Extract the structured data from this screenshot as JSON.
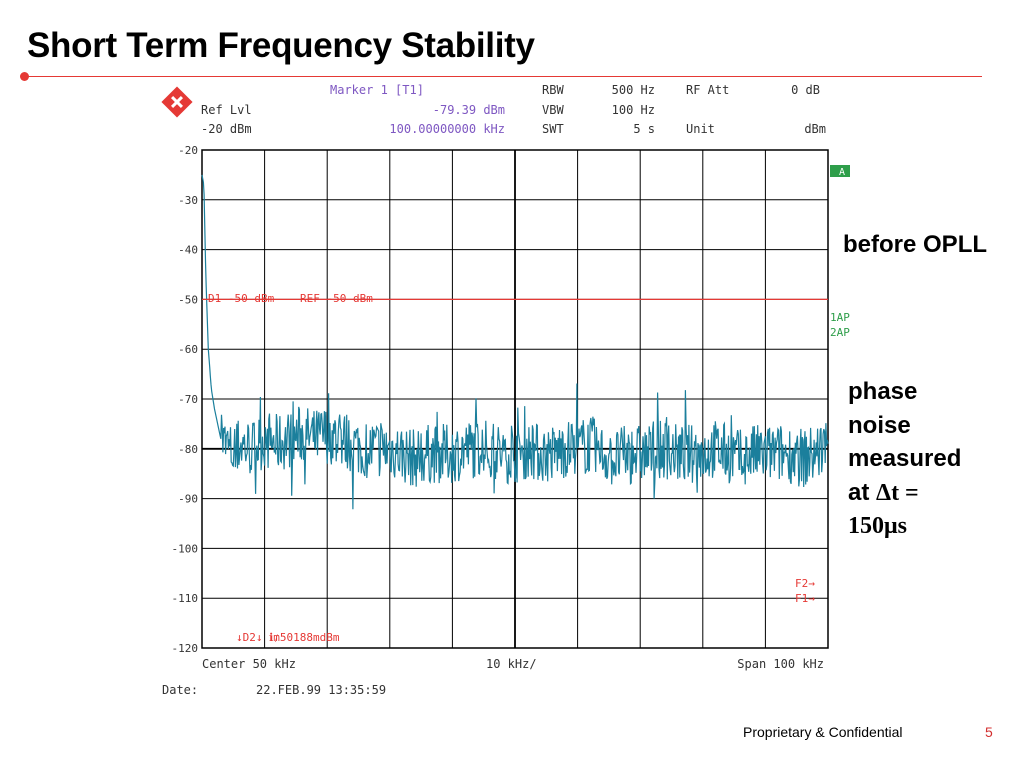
{
  "slide": {
    "title": "Short Term Frequency Stability",
    "footer": "Proprietary & Confidential",
    "page_number": "5"
  },
  "annotations": {
    "before": "before OPLL",
    "phase_line1": "phase",
    "phase_line2": "noise",
    "phase_line3": "measured",
    "phase_line4_prefix": "at ",
    "phase_line4_symbol": "Δt =",
    "phase_line5": "150μs"
  },
  "analyzer": {
    "header": {
      "marker_label": "Marker 1 [T1]",
      "marker_value": "-79.39 dBm",
      "marker_freq": "100.00000000 kHz",
      "ref_label": "Ref Lvl",
      "ref_value": "-20 dBm",
      "rbw_label": "RBW",
      "rbw_value": "500 Hz",
      "vbw_label": "VBW",
      "vbw_value": "100 Hz",
      "swt_label": "SWT",
      "swt_value": "5 s",
      "rfatt_label": "RF Att",
      "rfatt_value": "0 dB",
      "unit_label": "Unit",
      "unit_value": "dBm"
    },
    "side_labels": {
      "trace_a": "A",
      "ap1": "1AP",
      "ap2": "2AP",
      "f2": "F2→",
      "f1": "F1→"
    },
    "line_labels": {
      "d1": "D1  -50 dBm",
      "ref": "REF -50 dBm",
      "d2": "↓D2↓ ℹ₥50188mdBm"
    },
    "footer": {
      "center": "Center 50 kHz",
      "div": "10 kHz/",
      "span": "Span 100 kHz",
      "date_label": "Date:",
      "date_value": "22.FEB.99  13:35:59"
    },
    "colors": {
      "trace": "#1b7f9c",
      "grid": "#000000",
      "ref_line": "#e53935",
      "header_accent": "#7e57c2",
      "badge": "#2e9e4a"
    }
  },
  "chart_data": {
    "type": "line",
    "xlabel": "",
    "ylabel": "",
    "xlim": [
      0,
      100
    ],
    "ylim": [
      -120,
      -20
    ],
    "x_unit": "kHz",
    "y_unit": "dBm",
    "yticks": [
      -20,
      -30,
      -40,
      -50,
      -60,
      -70,
      -80,
      -90,
      -100,
      -110,
      -120
    ],
    "grid": true,
    "reference_line": -50,
    "series": [
      {
        "x": [
          0,
          0.3,
          0.6,
          1,
          1.5,
          2,
          3,
          4,
          5,
          6,
          8,
          10,
          12,
          14,
          16,
          18,
          20,
          22,
          24,
          26,
          28,
          30,
          32,
          34,
          36,
          38,
          40,
          42,
          44,
          46,
          48,
          50,
          52,
          54,
          56,
          58,
          60,
          62,
          64,
          66,
          68,
          70,
          72,
          74,
          76,
          78,
          80,
          82,
          84,
          86,
          88,
          90,
          92,
          94,
          96,
          98,
          100
        ],
        "y": [
          -25,
          -27,
          -45,
          -60,
          -68,
          -72,
          -78,
          -80,
          -81,
          -79,
          -80,
          -78,
          -79,
          -78,
          -77,
          -78,
          -77,
          -78,
          -79,
          -80,
          -80,
          -80,
          -81,
          -82,
          -81,
          -81,
          -81,
          -80,
          -80,
          -80,
          -81,
          -81,
          -80,
          -81,
          -81,
          -80,
          -80,
          -79,
          -81,
          -82,
          -81,
          -81,
          -81,
          -80,
          -81,
          -81,
          -81,
          -80,
          -81,
          -82,
          -81,
          -81,
          -81,
          -81,
          -82,
          -81,
          -79
        ]
      }
    ]
  }
}
